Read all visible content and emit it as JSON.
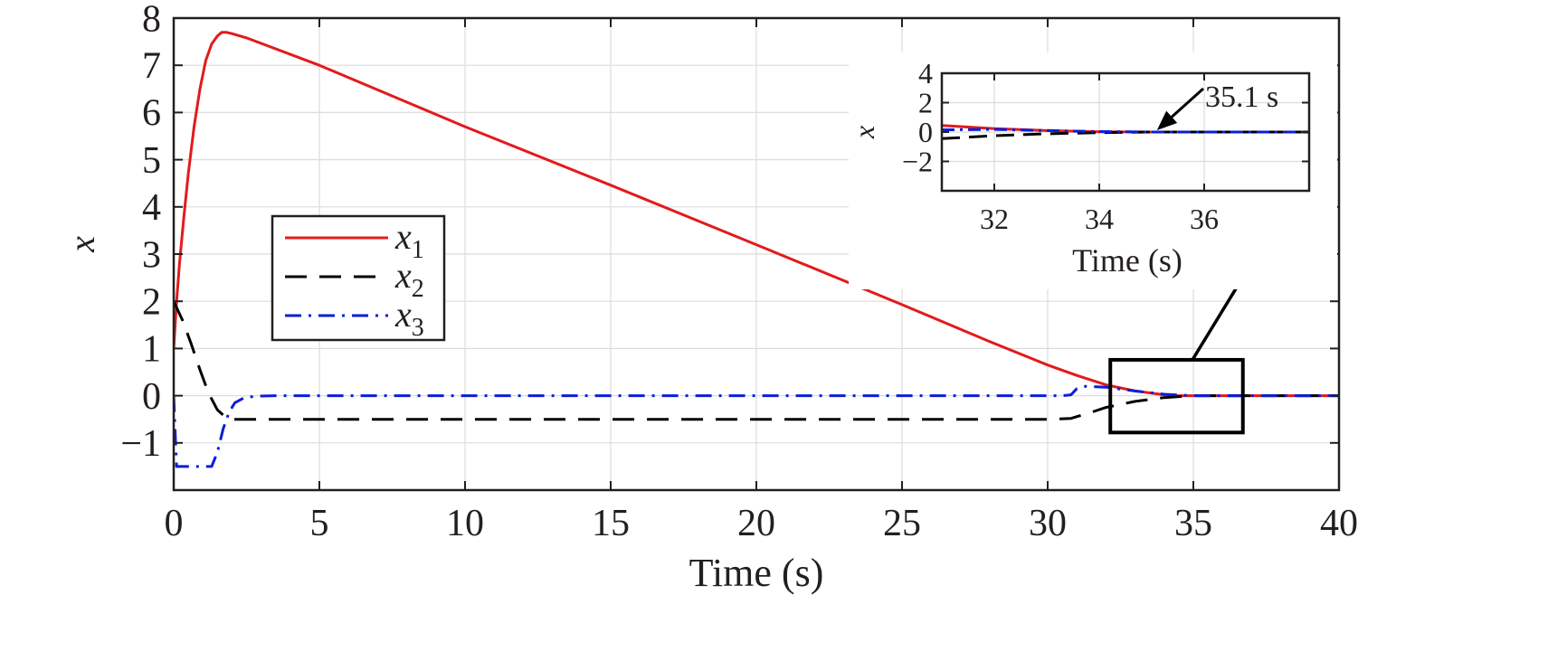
{
  "chart_data": [
    {
      "type": "line",
      "xlabel": "Time (s)",
      "ylabel": "x",
      "xlim": [
        0,
        40
      ],
      "ylim": [
        -2,
        8
      ],
      "xticks": [
        0,
        5,
        10,
        15,
        20,
        25,
        30,
        35,
        40
      ],
      "xtick_labels": [
        "0",
        "5",
        "10",
        "15",
        "20",
        "25",
        "30",
        "35",
        "40"
      ],
      "yticks": [
        -1,
        0,
        1,
        2,
        3,
        4,
        5,
        6,
        7,
        8
      ],
      "ytick_labels": [
        "−1",
        "0",
        "1",
        "2",
        "3",
        "4",
        "5",
        "6",
        "7",
        "8"
      ],
      "grid": true,
      "legend_position": "center-left",
      "series": [
        {
          "name": "x_1",
          "color": "#e31a1c",
          "style": "solid",
          "x": [
            0,
            0.1,
            0.2,
            0.35,
            0.5,
            0.7,
            0.9,
            1.1,
            1.3,
            1.5,
            1.65,
            1.8,
            2.0,
            2.5,
            5,
            10,
            15,
            20,
            25,
            28,
            30,
            31,
            32,
            33,
            34,
            34.5,
            35,
            36,
            40
          ],
          "y": [
            1.0,
            2.0,
            2.8,
            3.8,
            4.7,
            5.7,
            6.5,
            7.1,
            7.45,
            7.62,
            7.7,
            7.7,
            7.67,
            7.58,
            7.0,
            5.7,
            4.46,
            3.2,
            1.93,
            1.15,
            0.65,
            0.43,
            0.23,
            0.1,
            0.02,
            0.0,
            0.0,
            0.0,
            0.0
          ]
        },
        {
          "name": "x_2",
          "color": "#000000",
          "style": "dashed",
          "x": [
            0,
            0.3,
            0.6,
            0.9,
            1.2,
            1.5,
            1.8,
            2.0,
            2.5,
            5,
            10,
            20,
            30,
            30.8,
            31.5,
            32,
            33,
            34,
            35,
            36,
            40
          ],
          "y": [
            2.0,
            1.6,
            1.1,
            0.55,
            0.05,
            -0.3,
            -0.47,
            -0.5,
            -0.5,
            -0.5,
            -0.5,
            -0.5,
            -0.5,
            -0.48,
            -0.35,
            -0.25,
            -0.12,
            -0.04,
            0.0,
            0.0,
            0.0
          ]
        },
        {
          "name": "x_3",
          "color": "#0b1ed8",
          "style": "dashdot",
          "x": [
            0,
            0.02,
            0.1,
            0.3,
            1.0,
            1.3,
            1.5,
            1.7,
            1.9,
            2.1,
            2.4,
            2.8,
            3.5,
            10,
            20,
            30.5,
            30.8,
            31.0,
            31.3,
            32,
            33,
            34,
            35,
            40
          ],
          "y": [
            0,
            -0.3,
            -1.5,
            -1.5,
            -1.5,
            -1.5,
            -1.2,
            -0.7,
            -0.35,
            -0.15,
            -0.05,
            -0.01,
            0.0,
            0.0,
            0.0,
            0.0,
            0.02,
            0.15,
            0.2,
            0.18,
            0.1,
            0.03,
            0.0,
            0.0
          ]
        }
      ]
    },
    {
      "type": "line",
      "inset": true,
      "xlabel": "Time (s)",
      "ylabel": "x",
      "xlim": [
        31,
        38
      ],
      "ylim": [
        -4,
        4
      ],
      "xticks": [
        32,
        34,
        36
      ],
      "xtick_labels": [
        "32",
        "34",
        "36"
      ],
      "yticks": [
        -2,
        0,
        2,
        4
      ],
      "ytick_labels": [
        "−2",
        "0",
        "2",
        "4"
      ],
      "grid": true,
      "annotation": "35.1 s",
      "annotation_x": 35.1,
      "series": [
        {
          "name": "x_1",
          "color": "#e31a1c",
          "style": "solid",
          "x": [
            31,
            32,
            33,
            34,
            35,
            36,
            38
          ],
          "y": [
            0.45,
            0.23,
            0.1,
            0.02,
            0.0,
            0.0,
            0.0
          ]
        },
        {
          "name": "x_2",
          "color": "#000000",
          "style": "dashed",
          "x": [
            31,
            32,
            33,
            34,
            35,
            36,
            38
          ],
          "y": [
            -0.45,
            -0.25,
            -0.12,
            -0.04,
            0.0,
            0.0,
            0.0
          ]
        },
        {
          "name": "x_3",
          "color": "#0b1ed8",
          "style": "dashdot",
          "x": [
            31,
            32,
            33,
            34,
            35,
            36,
            38
          ],
          "y": [
            0.15,
            0.18,
            0.1,
            0.03,
            0.0,
            0.0,
            0.0
          ]
        }
      ]
    }
  ],
  "legend": {
    "entries": [
      {
        "base": "x",
        "sub": "1"
      },
      {
        "base": "x",
        "sub": "2"
      },
      {
        "base": "x",
        "sub": "3"
      }
    ]
  }
}
